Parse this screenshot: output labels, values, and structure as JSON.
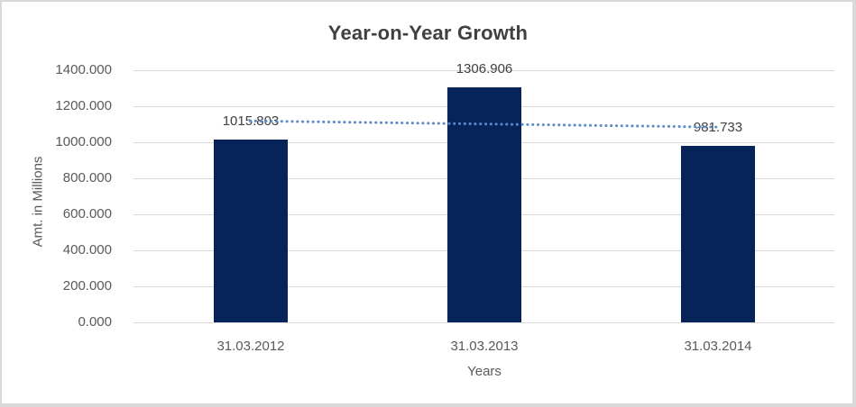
{
  "chart_data": {
    "type": "bar",
    "title": "Year-on-Year Growth",
    "xlabel": "Years",
    "ylabel": "Amt. in Millions",
    "categories": [
      "31.03.2012",
      "31.03.2013",
      "31.03.2014"
    ],
    "values": [
      1015.803,
      1306.906,
      981.733
    ],
    "value_labels": [
      "1015.803",
      "1306.906",
      "981.733"
    ],
    "ylim": [
      0,
      1400
    ],
    "ytick_labels": [
      "0.000",
      "200.000",
      "400.000",
      "600.000",
      "800.000",
      "1000.000",
      "1200.000",
      "1400.000"
    ],
    "grid": true,
    "legend_position": "none",
    "colors": {
      "bar": "#06235A",
      "trendline": "#5B8AC9",
      "gridline": "#d9d9d9",
      "title_text": "#404040",
      "axis_text": "#595959"
    },
    "trendline": {
      "type": "linear",
      "style": "dotted",
      "start_value": 1118.47,
      "end_value": 1084.4
    }
  }
}
